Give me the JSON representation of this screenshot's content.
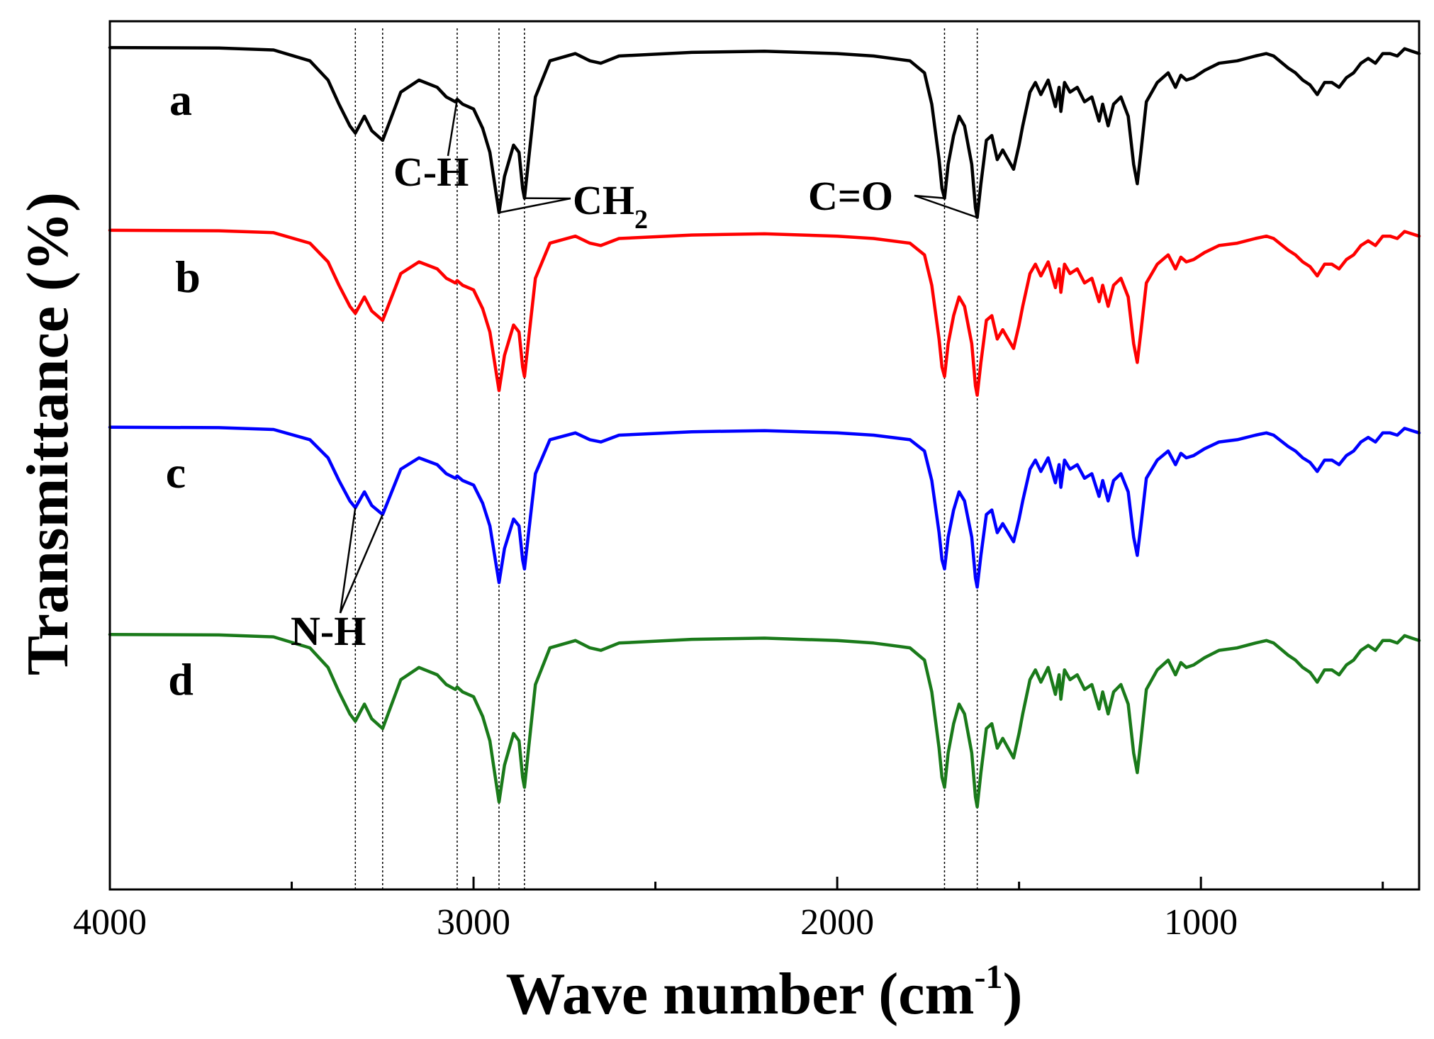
{
  "chart_data": {
    "type": "line",
    "title": "",
    "xlabel": "Wave number (cm",
    "xlabel_sup": "-1",
    "xlabel_close": ")",
    "ylabel": "Transmittance (%)",
    "xlim": [
      4000,
      400
    ],
    "xticks": [
      4000,
      3000,
      2000,
      1000
    ],
    "xtick_labels": [
      "4000",
      "3000",
      "2000",
      "1000"
    ],
    "grid": false,
    "reference_lines": [
      3325,
      3250,
      3045,
      2930,
      2860,
      1705,
      1615
    ],
    "annotations": [
      {
        "text": "C-H",
        "sub": "",
        "targets": [
          3045
        ]
      },
      {
        "text": "CH",
        "sub": "2",
        "targets": [
          2930,
          2860
        ]
      },
      {
        "text": "C=O",
        "sub": "",
        "targets": [
          1705,
          1615
        ]
      },
      {
        "text": "N-H",
        "sub": "",
        "targets": [
          3325,
          3250
        ]
      }
    ],
    "series": [
      {
        "name": "a",
        "color": "#000000",
        "x": [
          4000,
          3700,
          3550,
          3450,
          3400,
          3370,
          3340,
          3325,
          3300,
          3280,
          3250,
          3200,
          3150,
          3100,
          3075,
          3050,
          3045,
          3030,
          3000,
          2975,
          2955,
          2940,
          2930,
          2915,
          2890,
          2875,
          2865,
          2860,
          2850,
          2830,
          2790,
          2720,
          2680,
          2650,
          2600,
          2400,
          2200,
          2000,
          1900,
          1800,
          1760,
          1740,
          1720,
          1712,
          1705,
          1695,
          1680,
          1665,
          1650,
          1630,
          1620,
          1615,
          1605,
          1590,
          1575,
          1560,
          1545,
          1530,
          1515,
          1500,
          1490,
          1470,
          1455,
          1440,
          1420,
          1400,
          1390,
          1385,
          1375,
          1360,
          1340,
          1320,
          1300,
          1280,
          1270,
          1255,
          1240,
          1220,
          1200,
          1185,
          1175,
          1165,
          1150,
          1120,
          1090,
          1070,
          1055,
          1040,
          1020,
          990,
          950,
          900,
          850,
          820,
          800,
          760,
          740,
          720,
          700,
          680,
          660,
          640,
          620,
          600,
          580,
          560,
          540,
          520,
          500,
          480,
          460,
          440,
          420,
          400
        ],
        "y": [
          98.5,
          98.3,
          97.5,
          93,
          85,
          75,
          66,
          63,
          70,
          64,
          60,
          80,
          85,
          82,
          78,
          76,
          77,
          75,
          73,
          65,
          55,
          40,
          30,
          45,
          58,
          55,
          40,
          36,
          50,
          78,
          93,
          96,
          93,
          92,
          95,
          96.5,
          97,
          96,
          95,
          93,
          88,
          75,
          52,
          40,
          36,
          50,
          62,
          70,
          66,
          50,
          32,
          28,
          42,
          60,
          62,
          52,
          56,
          52,
          48,
          58,
          66,
          80,
          84,
          79,
          85,
          74,
          82,
          72,
          84,
          80,
          82,
          76,
          78,
          68,
          75,
          66,
          75,
          78,
          70,
          50,
          42,
          55,
          76,
          84,
          88,
          82,
          87,
          85,
          86,
          89,
          92,
          93,
          95,
          96,
          95,
          90,
          88,
          85,
          83,
          79,
          84,
          84,
          82,
          86,
          88,
          92,
          94,
          92,
          96,
          96,
          95,
          98,
          97,
          96
        ]
      },
      {
        "name": "b",
        "color": "#ff0000",
        "x": [
          4000,
          3700,
          3550,
          3450,
          3400,
          3370,
          3340,
          3325,
          3300,
          3280,
          3250,
          3200,
          3150,
          3100,
          3075,
          3050,
          3045,
          3030,
          3000,
          2975,
          2955,
          2940,
          2930,
          2915,
          2890,
          2875,
          2865,
          2860,
          2850,
          2830,
          2790,
          2720,
          2680,
          2650,
          2600,
          2400,
          2200,
          2000,
          1900,
          1800,
          1760,
          1740,
          1720,
          1712,
          1705,
          1695,
          1680,
          1665,
          1650,
          1630,
          1620,
          1615,
          1605,
          1590,
          1575,
          1560,
          1545,
          1530,
          1515,
          1500,
          1490,
          1470,
          1455,
          1440,
          1420,
          1400,
          1390,
          1385,
          1375,
          1360,
          1340,
          1320,
          1300,
          1280,
          1270,
          1255,
          1240,
          1220,
          1200,
          1185,
          1175,
          1165,
          1150,
          1120,
          1090,
          1070,
          1055,
          1040,
          1020,
          990,
          950,
          900,
          850,
          820,
          800,
          760,
          740,
          720,
          700,
          680,
          660,
          640,
          620,
          600,
          580,
          560,
          540,
          520,
          500,
          480,
          460,
          440,
          420,
          400
        ],
        "y": [
          98.5,
          98.3,
          97.5,
          93,
          85,
          75,
          66,
          63,
          70,
          64,
          60,
          80,
          85,
          82,
          78,
          76,
          77,
          75,
          73,
          65,
          55,
          40,
          30,
          45,
          58,
          55,
          40,
          36,
          50,
          78,
          93,
          96,
          93,
          92,
          95,
          96.5,
          97,
          96,
          95,
          93,
          88,
          75,
          52,
          40,
          36,
          50,
          62,
          70,
          66,
          50,
          32,
          28,
          42,
          60,
          62,
          52,
          56,
          52,
          48,
          58,
          66,
          80,
          84,
          79,
          85,
          74,
          82,
          72,
          84,
          80,
          82,
          76,
          78,
          68,
          75,
          66,
          75,
          78,
          70,
          50,
          42,
          55,
          76,
          84,
          88,
          82,
          87,
          85,
          86,
          89,
          92,
          93,
          95,
          96,
          95,
          90,
          88,
          85,
          83,
          79,
          84,
          84,
          82,
          86,
          88,
          92,
          94,
          92,
          96,
          96,
          95,
          98,
          97,
          96
        ]
      },
      {
        "name": "c",
        "color": "#0000ff",
        "x": [
          4000,
          3700,
          3550,
          3450,
          3400,
          3370,
          3340,
          3325,
          3300,
          3280,
          3250,
          3200,
          3150,
          3100,
          3075,
          3050,
          3045,
          3030,
          3000,
          2975,
          2955,
          2940,
          2930,
          2915,
          2890,
          2875,
          2865,
          2860,
          2850,
          2830,
          2790,
          2720,
          2680,
          2650,
          2600,
          2400,
          2200,
          2000,
          1900,
          1800,
          1760,
          1740,
          1720,
          1712,
          1705,
          1695,
          1680,
          1665,
          1650,
          1630,
          1620,
          1615,
          1605,
          1590,
          1575,
          1560,
          1545,
          1530,
          1515,
          1500,
          1490,
          1470,
          1455,
          1440,
          1420,
          1400,
          1390,
          1385,
          1375,
          1360,
          1340,
          1320,
          1300,
          1280,
          1270,
          1255,
          1240,
          1220,
          1200,
          1185,
          1175,
          1165,
          1150,
          1120,
          1090,
          1070,
          1055,
          1040,
          1020,
          990,
          950,
          900,
          850,
          820,
          800,
          760,
          740,
          720,
          700,
          680,
          660,
          640,
          620,
          600,
          580,
          560,
          540,
          520,
          500,
          480,
          460,
          440,
          420,
          400
        ],
        "y": [
          98.5,
          98.3,
          97.5,
          93,
          85,
          75,
          66,
          63,
          70,
          64,
          60,
          80,
          85,
          82,
          78,
          76,
          77,
          75,
          73,
          65,
          55,
          40,
          30,
          45,
          58,
          55,
          40,
          36,
          50,
          78,
          93,
          96,
          93,
          92,
          95,
          96.5,
          97,
          96,
          95,
          93,
          88,
          75,
          52,
          40,
          36,
          50,
          62,
          70,
          66,
          50,
          32,
          28,
          42,
          60,
          62,
          52,
          56,
          52,
          48,
          58,
          66,
          80,
          84,
          79,
          85,
          74,
          82,
          72,
          84,
          80,
          82,
          76,
          78,
          68,
          75,
          66,
          75,
          78,
          70,
          50,
          42,
          55,
          76,
          84,
          88,
          82,
          87,
          85,
          86,
          89,
          92,
          93,
          95,
          96,
          95,
          90,
          88,
          85,
          83,
          79,
          84,
          84,
          82,
          86,
          88,
          92,
          94,
          92,
          96,
          96,
          95,
          98,
          97,
          96
        ]
      },
      {
        "name": "d",
        "color": "#1a7a1a",
        "x": [
          4000,
          3700,
          3550,
          3450,
          3400,
          3370,
          3340,
          3325,
          3300,
          3280,
          3250,
          3200,
          3150,
          3100,
          3075,
          3050,
          3045,
          3030,
          3000,
          2975,
          2955,
          2940,
          2930,
          2915,
          2890,
          2875,
          2865,
          2860,
          2850,
          2830,
          2790,
          2720,
          2680,
          2650,
          2600,
          2400,
          2200,
          2000,
          1900,
          1800,
          1760,
          1740,
          1720,
          1712,
          1705,
          1695,
          1680,
          1665,
          1650,
          1630,
          1620,
          1615,
          1605,
          1590,
          1575,
          1560,
          1545,
          1530,
          1515,
          1500,
          1490,
          1470,
          1455,
          1440,
          1420,
          1400,
          1390,
          1385,
          1375,
          1360,
          1340,
          1320,
          1300,
          1280,
          1270,
          1255,
          1240,
          1220,
          1200,
          1185,
          1175,
          1165,
          1150,
          1120,
          1090,
          1070,
          1055,
          1040,
          1020,
          990,
          950,
          900,
          850,
          820,
          800,
          760,
          740,
          720,
          700,
          680,
          660,
          640,
          620,
          600,
          580,
          560,
          540,
          520,
          500,
          480,
          460,
          440,
          420,
          400
        ],
        "y": [
          98.5,
          98.3,
          97.5,
          93,
          85,
          75,
          66,
          63,
          70,
          64,
          60,
          80,
          85,
          82,
          78,
          76,
          77,
          75,
          73,
          65,
          55,
          40,
          30,
          45,
          58,
          55,
          40,
          36,
          50,
          78,
          93,
          96,
          93,
          92,
          95,
          96.5,
          97,
          96,
          95,
          93,
          88,
          75,
          52,
          40,
          36,
          50,
          62,
          70,
          66,
          50,
          32,
          28,
          42,
          60,
          62,
          52,
          56,
          52,
          48,
          58,
          66,
          80,
          84,
          79,
          85,
          74,
          82,
          72,
          84,
          80,
          82,
          76,
          78,
          68,
          75,
          66,
          75,
          78,
          70,
          50,
          42,
          55,
          76,
          84,
          88,
          82,
          87,
          85,
          86,
          89,
          92,
          93,
          95,
          96,
          95,
          90,
          88,
          85,
          83,
          79,
          84,
          84,
          82,
          86,
          88,
          92,
          94,
          92,
          96,
          96,
          95,
          98,
          97,
          96
        ]
      }
    ]
  }
}
